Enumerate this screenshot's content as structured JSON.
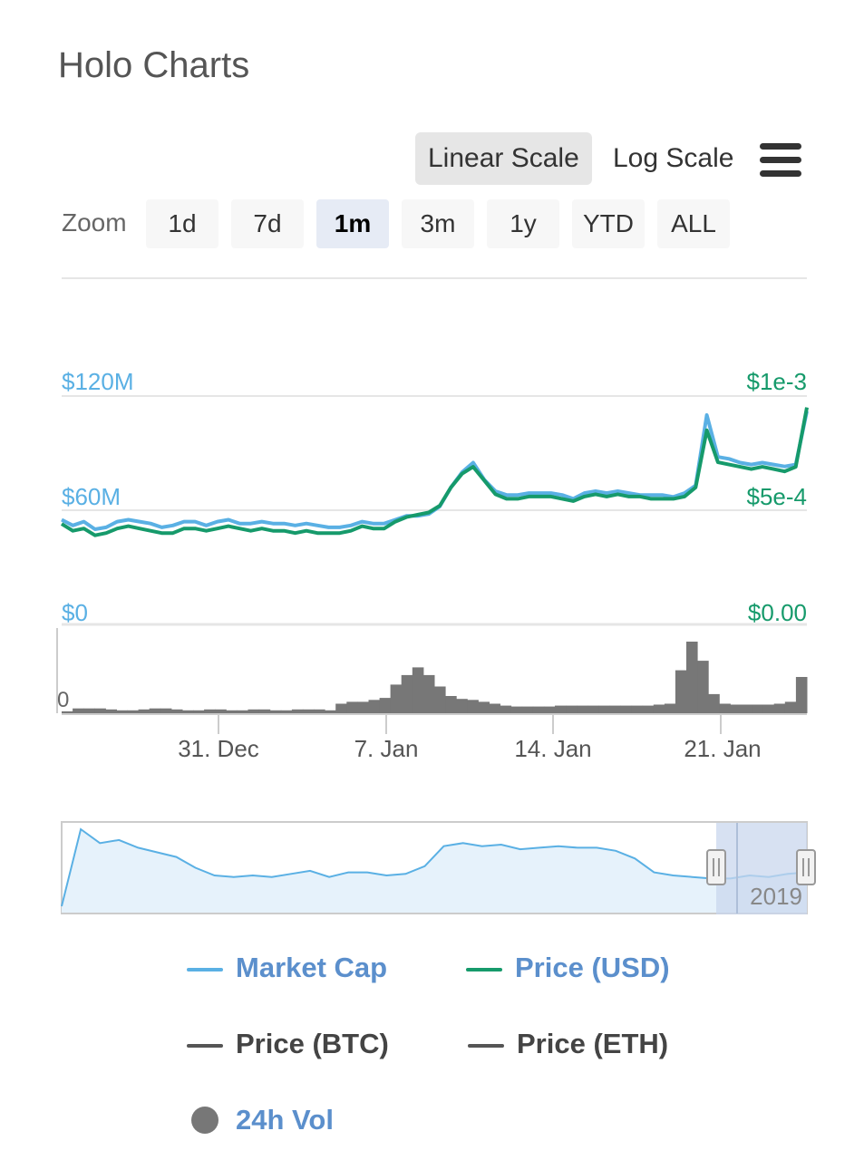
{
  "header": {
    "title": "Holo Charts"
  },
  "scale": {
    "linear_label": "Linear Scale",
    "log_label": "Log Scale",
    "active": "linear"
  },
  "zoom": {
    "label": "Zoom",
    "options": [
      "1d",
      "7d",
      "1m",
      "3m",
      "1y",
      "YTD",
      "ALL"
    ],
    "active": "1m"
  },
  "colors": {
    "market_cap": "#5ab0e4",
    "price_usd": "#169a6b",
    "price_btc": "#555555",
    "price_eth": "#555555",
    "volume": "#777777",
    "navigator_fill": "#e6f2fb",
    "navigator_selection": "#c9d7ee"
  },
  "chart_data": {
    "type": "line",
    "y_left": {
      "ticks": [
        "$120M",
        "$60M",
        "$0"
      ],
      "range": [
        0,
        120000000
      ]
    },
    "y_right": {
      "ticks": [
        "$1e-3",
        "$5e-4",
        "$0.00"
      ],
      "range": [
        0,
        0.001
      ]
    },
    "volume_axis": {
      "ticks": [
        "0"
      ]
    },
    "x": {
      "ticks": [
        "31. Dec",
        "7. Jan",
        "14. Jan",
        "21. Jan"
      ]
    },
    "series": [
      {
        "name": "Market Cap",
        "values": [
          55000000,
          52000000,
          54000000,
          50000000,
          51000000,
          54000000,
          55000000,
          54000000,
          53000000,
          51000000,
          52000000,
          54000000,
          54000000,
          52000000,
          54000000,
          55000000,
          53000000,
          53000000,
          54000000,
          53000000,
          53000000,
          52000000,
          53000000,
          52000000,
          51000000,
          51000000,
          52000000,
          54000000,
          53000000,
          53000000,
          55000000,
          57000000,
          57000000,
          58000000,
          62000000,
          72000000,
          80000000,
          85000000,
          76000000,
          70000000,
          68000000,
          68000000,
          69000000,
          69000000,
          69000000,
          68000000,
          66000000,
          69000000,
          70000000,
          69000000,
          70000000,
          69000000,
          68000000,
          68000000,
          68000000,
          67000000,
          69000000,
          73000000,
          110000000,
          88000000,
          87000000,
          85000000,
          84000000,
          85000000,
          84000000,
          83000000,
          84000000,
          112000000
        ]
      },
      {
        "name": "Price (USD)",
        "values": [
          0.00044,
          0.00041,
          0.00042,
          0.00039,
          0.0004,
          0.00042,
          0.00043,
          0.00042,
          0.00041,
          0.0004,
          0.0004,
          0.00042,
          0.00042,
          0.00041,
          0.00042,
          0.00043,
          0.00042,
          0.00041,
          0.00042,
          0.00041,
          0.00041,
          0.0004,
          0.00041,
          0.0004,
          0.0004,
          0.0004,
          0.00041,
          0.00043,
          0.00042,
          0.00042,
          0.00045,
          0.00047,
          0.00048,
          0.00049,
          0.00052,
          0.0006,
          0.00066,
          0.00069,
          0.00063,
          0.00057,
          0.00055,
          0.00055,
          0.00056,
          0.00056,
          0.00056,
          0.00055,
          0.00054,
          0.00056,
          0.00057,
          0.00056,
          0.00057,
          0.00056,
          0.00056,
          0.00055,
          0.00055,
          0.00055,
          0.00056,
          0.0006,
          0.00085,
          0.00071,
          0.0007,
          0.00069,
          0.00068,
          0.00069,
          0.00068,
          0.00067,
          0.00069,
          0.00095
        ]
      },
      {
        "name": "Price (BTC)"
      },
      {
        "name": "Price (ETH)"
      },
      {
        "name": "24h Vol",
        "type": "column",
        "values": [
          2,
          5,
          5,
          5,
          4,
          3,
          3,
          4,
          5,
          5,
          4,
          3,
          3,
          4,
          4,
          3,
          3,
          4,
          4,
          3,
          3,
          4,
          4,
          4,
          3,
          10,
          12,
          12,
          14,
          16,
          30,
          40,
          48,
          40,
          28,
          18,
          15,
          14,
          12,
          10,
          8,
          7,
          7,
          7,
          7,
          8,
          8,
          8,
          8,
          8,
          8,
          8,
          8,
          8,
          9,
          10,
          45,
          75,
          55,
          20,
          10,
          9,
          9,
          9,
          9,
          10,
          12,
          38
        ]
      }
    ],
    "navigator": {
      "x_label": "2019",
      "values": [
        0,
        100,
        82,
        86,
        76,
        70,
        64,
        50,
        40,
        38,
        40,
        38,
        42,
        46,
        38,
        44,
        44,
        40,
        42,
        52,
        78,
        82,
        78,
        80,
        74,
        76,
        78,
        76,
        76,
        72,
        62,
        44,
        40,
        38,
        36,
        36,
        40,
        38,
        42,
        44
      ]
    },
    "legend_position": "bottom"
  },
  "legend": {
    "items": [
      {
        "label": "Market Cap",
        "symbol": "line"
      },
      {
        "label": "Price (USD)",
        "symbol": "line"
      },
      {
        "label": "Price (BTC)",
        "symbol": "line"
      },
      {
        "label": "Price (ETH)",
        "symbol": "line"
      },
      {
        "label": "24h Vol",
        "symbol": "dot"
      }
    ]
  }
}
